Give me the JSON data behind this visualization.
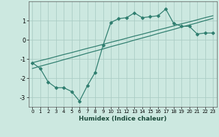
{
  "title": "",
  "xlabel": "Humidex (Indice chaleur)",
  "bg_color": "#cce8e0",
  "line_color": "#2e7d6e",
  "grid_color": "#aaccc4",
  "x_data": [
    0,
    1,
    2,
    3,
    4,
    5,
    6,
    7,
    8,
    9,
    10,
    11,
    12,
    13,
    14,
    15,
    16,
    17,
    18,
    19,
    20,
    21,
    22,
    23
  ],
  "line1": [
    -1.2,
    -1.5,
    -2.2,
    -2.5,
    -2.5,
    -2.7,
    -3.2,
    -2.4,
    -1.7,
    -0.3,
    0.9,
    1.1,
    1.15,
    1.4,
    1.15,
    1.2,
    1.25,
    1.6,
    0.85,
    0.7,
    0.7,
    0.3,
    0.35,
    0.35
  ],
  "regression1": [
    -1.2,
    -1.09,
    -0.99,
    -0.88,
    -0.77,
    -0.67,
    -0.56,
    -0.45,
    -0.35,
    -0.24,
    -0.13,
    -0.03,
    0.08,
    0.19,
    0.29,
    0.4,
    0.51,
    0.61,
    0.72,
    0.83,
    0.93,
    1.04,
    1.15,
    1.25
  ],
  "regression2": [
    -1.5,
    -1.38,
    -1.27,
    -1.16,
    -1.04,
    -0.93,
    -0.82,
    -0.7,
    -0.59,
    -0.48,
    -0.36,
    -0.25,
    -0.14,
    -0.02,
    0.09,
    0.2,
    0.32,
    0.43,
    0.54,
    0.66,
    0.77,
    0.88,
    1.0,
    1.11
  ],
  "ylim": [
    -3.5,
    2.0
  ],
  "xlim": [
    -0.5,
    23.5
  ],
  "yticks": [
    -3,
    -2,
    -1,
    0,
    1
  ],
  "xticks": [
    0,
    1,
    2,
    3,
    4,
    5,
    6,
    7,
    8,
    9,
    10,
    11,
    12,
    13,
    14,
    15,
    16,
    17,
    18,
    19,
    20,
    21,
    22,
    23
  ]
}
